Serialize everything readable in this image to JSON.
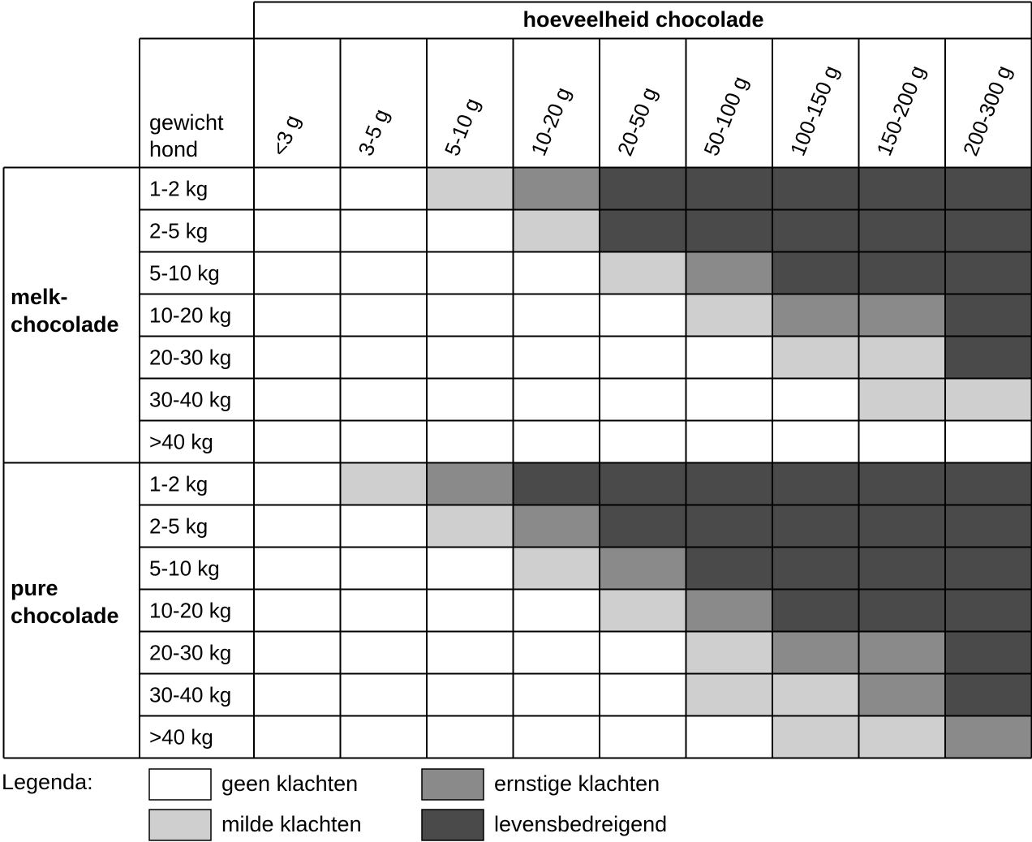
{
  "chart_data": {
    "type": "heatmap",
    "column_group_label": "hoeveelheid chocolade",
    "row_header_label": [
      "gewicht",
      "hond"
    ],
    "columns": [
      "<3 g",
      "3-5 g",
      "5-10 g",
      "10-20 g",
      "20-50 g",
      "50-100 g",
      "100-150 g",
      "150-200 g",
      "200-300 g"
    ],
    "groups": [
      {
        "label": [
          "melk-",
          "chocolade"
        ],
        "rows": [
          {
            "weight": "1-2 kg",
            "levels": [
              0,
              0,
              1,
              2,
              3,
              3,
              3,
              3,
              3
            ]
          },
          {
            "weight": "2-5 kg",
            "levels": [
              0,
              0,
              0,
              1,
              3,
              3,
              3,
              3,
              3
            ]
          },
          {
            "weight": "5-10 kg",
            "levels": [
              0,
              0,
              0,
              0,
              1,
              2,
              3,
              3,
              3
            ]
          },
          {
            "weight": "10-20 kg",
            "levels": [
              0,
              0,
              0,
              0,
              0,
              1,
              2,
              2,
              3
            ]
          },
          {
            "weight": "20-30 kg",
            "levels": [
              0,
              0,
              0,
              0,
              0,
              0,
              1,
              1,
              3
            ]
          },
          {
            "weight": "30-40 kg",
            "levels": [
              0,
              0,
              0,
              0,
              0,
              0,
              0,
              1,
              1
            ]
          },
          {
            "weight": ">40 kg",
            "levels": [
              0,
              0,
              0,
              0,
              0,
              0,
              0,
              0,
              0
            ]
          }
        ]
      },
      {
        "label": [
          "pure",
          "chocolade"
        ],
        "rows": [
          {
            "weight": "1-2 kg",
            "levels": [
              0,
              1,
              2,
              3,
              3,
              3,
              3,
              3,
              3
            ]
          },
          {
            "weight": "2-5 kg",
            "levels": [
              0,
              0,
              1,
              2,
              3,
              3,
              3,
              3,
              3
            ]
          },
          {
            "weight": "5-10 kg",
            "levels": [
              0,
              0,
              0,
              1,
              2,
              3,
              3,
              3,
              3
            ]
          },
          {
            "weight": "10-20 kg",
            "levels": [
              0,
              0,
              0,
              0,
              1,
              2,
              3,
              3,
              3
            ]
          },
          {
            "weight": "20-30 kg",
            "levels": [
              0,
              0,
              0,
              0,
              0,
              1,
              2,
              2,
              3
            ]
          },
          {
            "weight": "30-40 kg",
            "levels": [
              0,
              0,
              0,
              0,
              0,
              1,
              1,
              2,
              3
            ]
          },
          {
            "weight": ">40 kg",
            "levels": [
              0,
              0,
              0,
              0,
              0,
              0,
              1,
              1,
              2
            ]
          }
        ]
      }
    ],
    "legend_title": "Legenda:",
    "legend": [
      {
        "level": 0,
        "label": "geen klachten",
        "color": "#ffffff"
      },
      {
        "level": 1,
        "label": "milde klachten",
        "color": "#cfcfcf"
      },
      {
        "level": 2,
        "label": "ernstige klachten",
        "color": "#8a8a8a"
      },
      {
        "level": 3,
        "label": "levensbedreigend",
        "color": "#4a4a4a"
      }
    ]
  }
}
